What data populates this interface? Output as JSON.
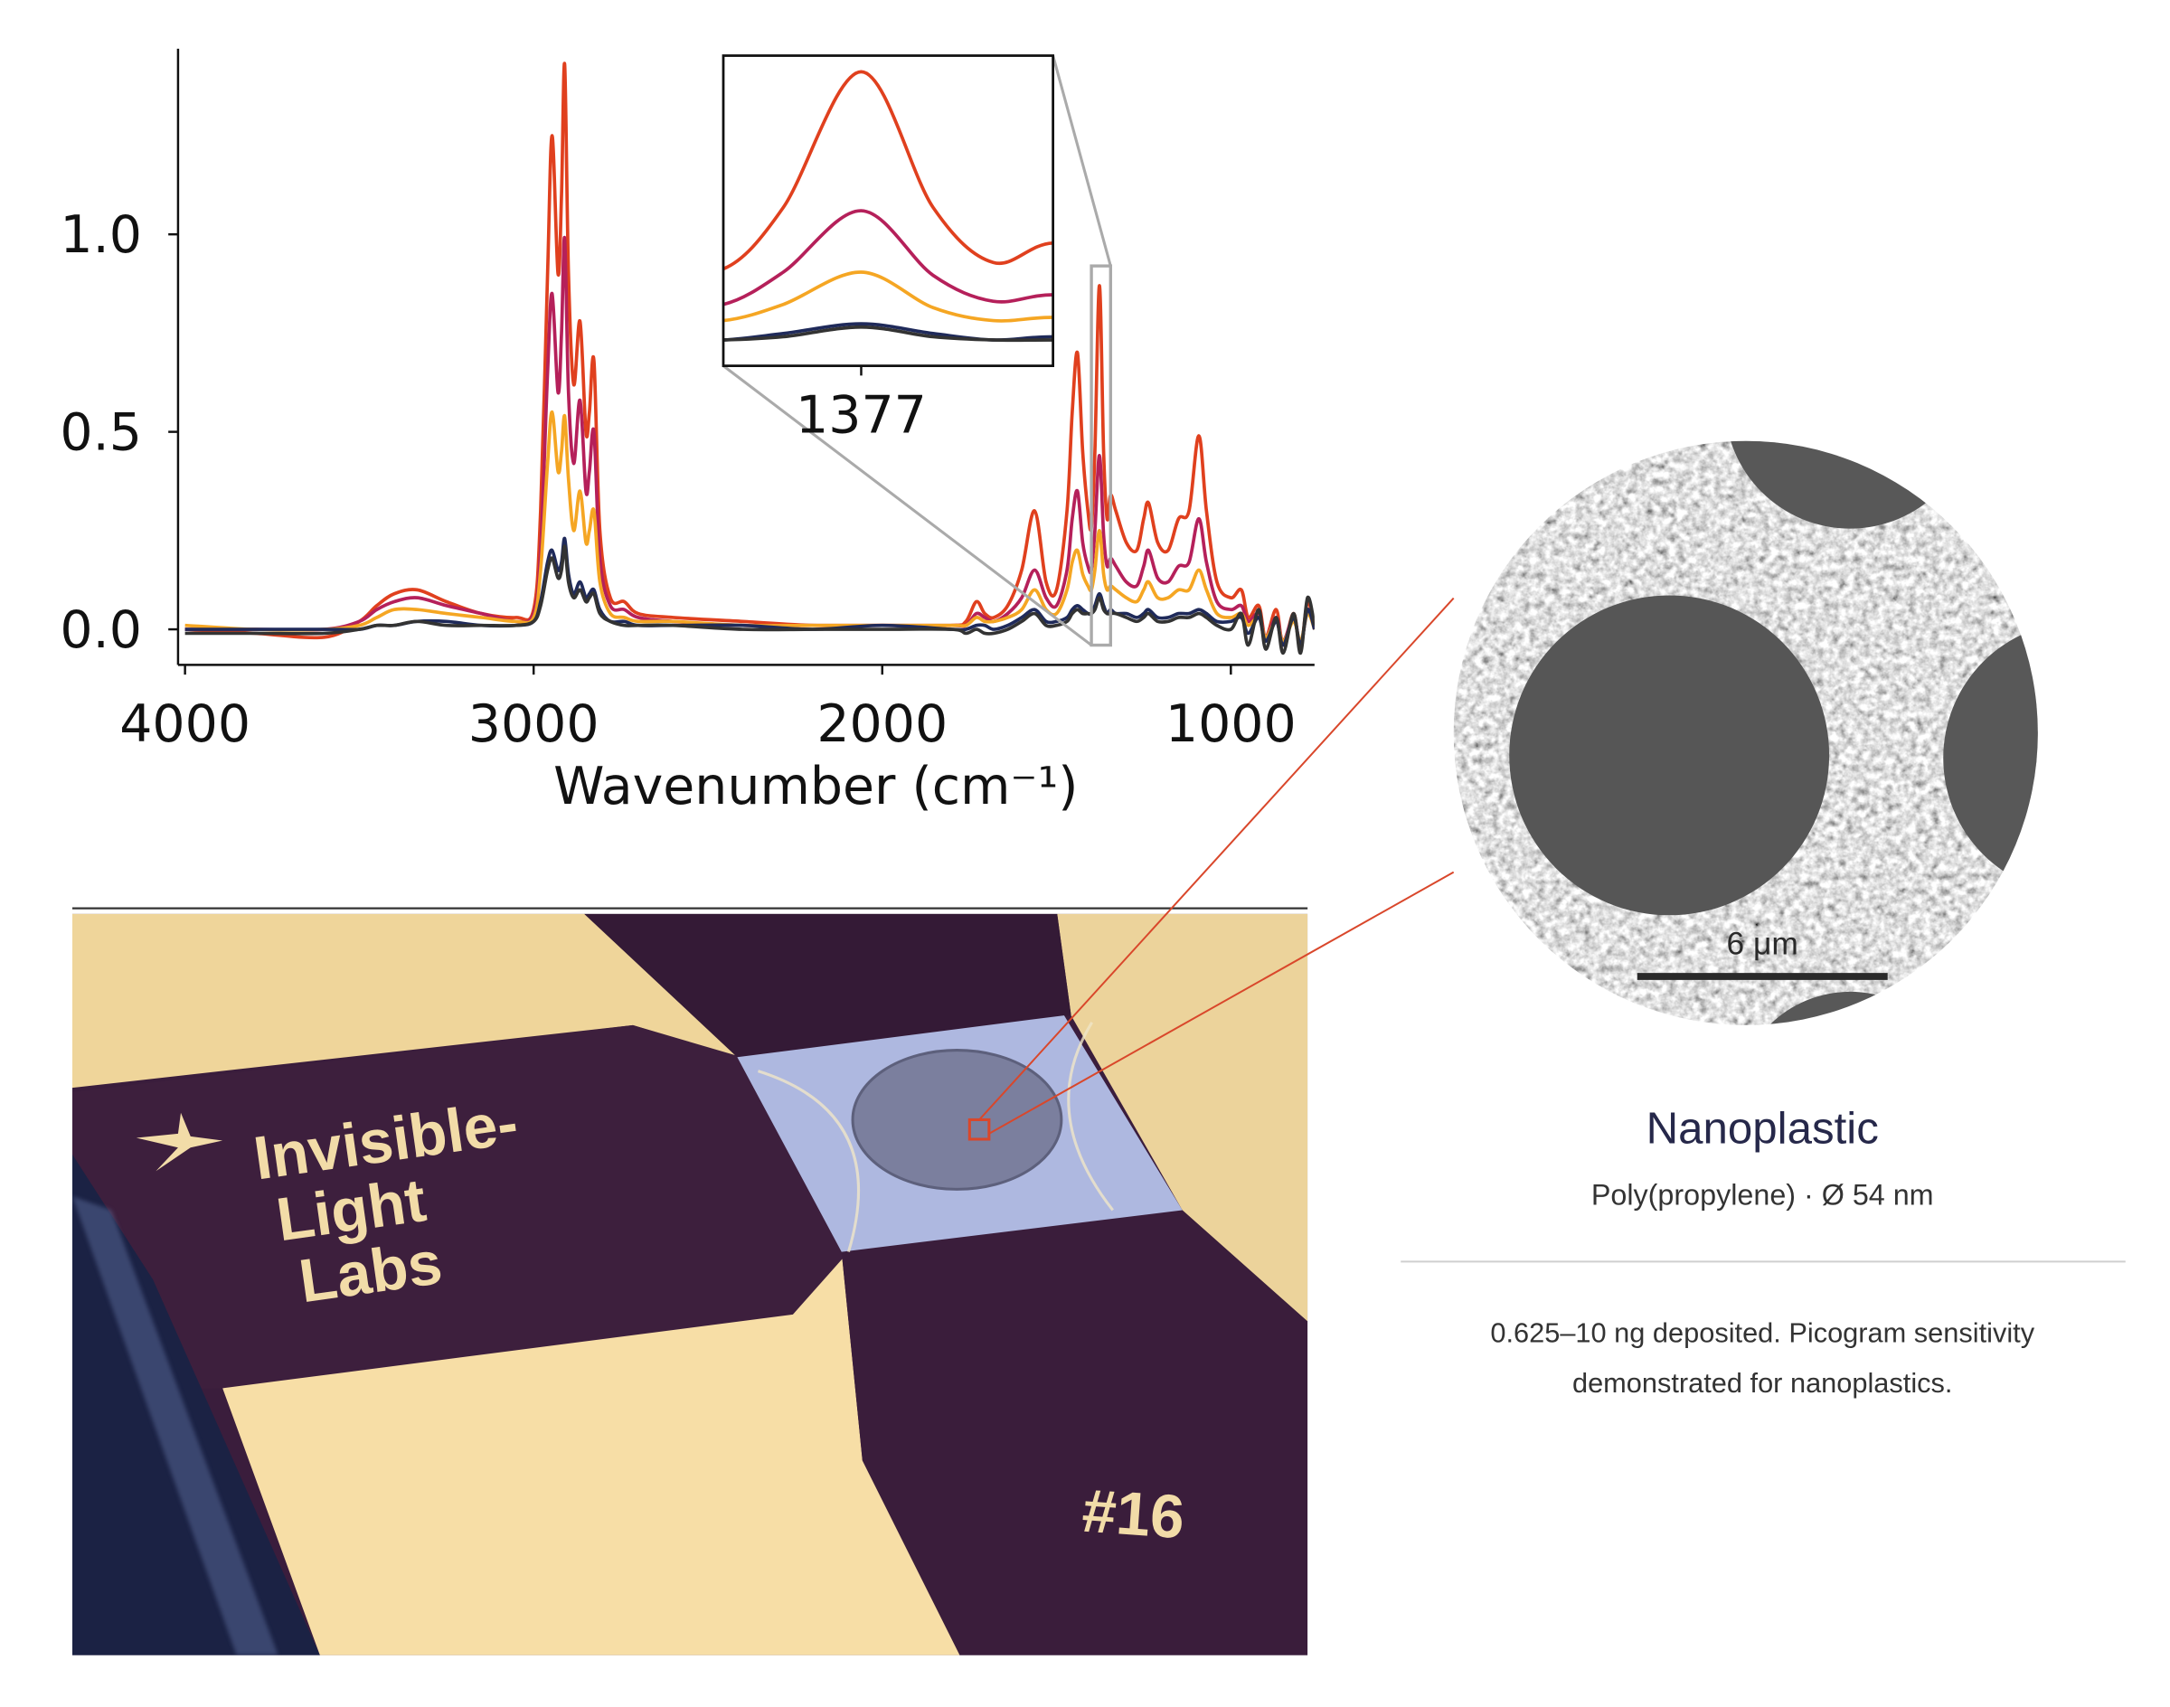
{
  "chart_data": {
    "type": "line",
    "x_label": "Wavenumber (cm⁻¹)",
    "x": [
      4000,
      3800,
      3600,
      3500,
      3450,
      3400,
      3334,
      3250,
      3150,
      3050,
      3000,
      2980,
      2960,
      2947,
      2930,
      2920,
      2911,
      2900,
      2885,
      2867,
      2850,
      2840,
      2827,
      2810,
      2780,
      2740,
      2700,
      2600,
      2400,
      2200,
      2000,
      1800,
      1760,
      1730,
      1706,
      1680,
      1640,
      1600,
      1563,
      1530,
      1500,
      1470,
      1455,
      1440,
      1425,
      1410,
      1400,
      1390,
      1377,
      1365,
      1355,
      1345,
      1330,
      1300,
      1270,
      1250,
      1236,
      1210,
      1180,
      1150,
      1120,
      1092,
      1070,
      1040,
      1000,
      970,
      950,
      920,
      900,
      870,
      850,
      820,
      800,
      780,
      760
    ],
    "series": [
      {
        "color": "#e0401e",
        "values": [
          0.0,
          -0.01,
          -0.02,
          0.02,
          0.06,
          0.09,
          0.1,
          0.07,
          0.04,
          0.03,
          0.05,
          0.3,
          0.9,
          1.25,
          0.9,
          1.1,
          1.43,
          0.9,
          0.62,
          0.78,
          0.5,
          0.55,
          0.68,
          0.25,
          0.08,
          0.07,
          0.04,
          0.03,
          0.02,
          0.01,
          0.01,
          0.01,
          0.02,
          0.07,
          0.04,
          0.03,
          0.06,
          0.15,
          0.3,
          0.12,
          0.1,
          0.3,
          0.55,
          0.7,
          0.45,
          0.3,
          0.26,
          0.45,
          0.87,
          0.45,
          0.28,
          0.34,
          0.3,
          0.22,
          0.2,
          0.28,
          0.32,
          0.22,
          0.2,
          0.28,
          0.3,
          0.49,
          0.3,
          0.12,
          0.08,
          0.1,
          0.03,
          0.06,
          -0.02,
          0.05,
          -0.04,
          0.04,
          -0.05,
          0.07,
          0.0
        ]
      },
      {
        "color": "#b5205a",
        "values": [
          0.0,
          0.0,
          0.0,
          0.02,
          0.05,
          0.07,
          0.08,
          0.06,
          0.04,
          0.02,
          0.04,
          0.2,
          0.65,
          0.85,
          0.6,
          0.75,
          0.99,
          0.6,
          0.42,
          0.58,
          0.35,
          0.4,
          0.5,
          0.18,
          0.06,
          0.05,
          0.03,
          0.02,
          0.01,
          0.01,
          0.01,
          0.01,
          0.01,
          0.04,
          0.03,
          0.02,
          0.04,
          0.08,
          0.15,
          0.08,
          0.06,
          0.15,
          0.28,
          0.35,
          0.22,
          0.16,
          0.15,
          0.25,
          0.44,
          0.24,
          0.16,
          0.18,
          0.16,
          0.12,
          0.11,
          0.16,
          0.2,
          0.13,
          0.12,
          0.16,
          0.17,
          0.28,
          0.17,
          0.07,
          0.05,
          0.06,
          0.02,
          0.04,
          -0.02,
          0.03,
          -0.03,
          0.03,
          -0.04,
          0.05,
          0.0
        ]
      },
      {
        "color": "#f5a623",
        "values": [
          0.01,
          0.0,
          0.0,
          0.01,
          0.03,
          0.05,
          0.05,
          0.04,
          0.03,
          0.02,
          0.03,
          0.15,
          0.42,
          0.55,
          0.4,
          0.45,
          0.54,
          0.38,
          0.25,
          0.35,
          0.22,
          0.25,
          0.3,
          0.12,
          0.04,
          0.03,
          0.02,
          0.02,
          0.01,
          0.01,
          0.01,
          0.01,
          0.01,
          0.03,
          0.02,
          0.02,
          0.03,
          0.05,
          0.1,
          0.05,
          0.04,
          0.1,
          0.17,
          0.2,
          0.14,
          0.11,
          0.1,
          0.15,
          0.25,
          0.14,
          0.1,
          0.11,
          0.1,
          0.08,
          0.07,
          0.1,
          0.12,
          0.08,
          0.08,
          0.1,
          0.1,
          0.15,
          0.1,
          0.04,
          0.03,
          0.04,
          0.01,
          0.03,
          -0.02,
          0.02,
          -0.03,
          0.02,
          -0.03,
          0.04,
          0.0
        ]
      },
      {
        "color": "#1f2a5a",
        "values": [
          0.0,
          0.0,
          0.0,
          0.0,
          0.01,
          0.01,
          0.02,
          0.02,
          0.01,
          0.01,
          0.02,
          0.07,
          0.17,
          0.2,
          0.15,
          0.17,
          0.23,
          0.14,
          0.09,
          0.12,
          0.08,
          0.09,
          0.1,
          0.05,
          0.02,
          0.02,
          0.01,
          0.01,
          0.01,
          0.0,
          0.01,
          0.0,
          0.0,
          0.01,
          0.01,
          0.0,
          0.01,
          0.03,
          0.05,
          0.02,
          0.02,
          0.03,
          0.05,
          0.06,
          0.05,
          0.04,
          0.04,
          0.06,
          0.09,
          0.06,
          0.04,
          0.05,
          0.04,
          0.04,
          0.03,
          0.04,
          0.05,
          0.03,
          0.03,
          0.04,
          0.04,
          0.05,
          0.04,
          0.02,
          0.02,
          0.03,
          -0.01,
          0.03,
          -0.03,
          0.02,
          -0.04,
          0.03,
          -0.04,
          0.05,
          0.0
        ]
      },
      {
        "color": "#333333",
        "values": [
          -0.01,
          -0.01,
          -0.01,
          0.0,
          0.01,
          0.01,
          0.02,
          0.01,
          0.01,
          0.01,
          0.02,
          0.06,
          0.15,
          0.18,
          0.13,
          0.15,
          0.21,
          0.12,
          0.08,
          0.1,
          0.07,
          0.08,
          0.09,
          0.04,
          0.02,
          0.01,
          0.01,
          0.01,
          0.0,
          0.0,
          0.0,
          0.0,
          -0.01,
          0.0,
          -0.01,
          -0.01,
          0.0,
          0.02,
          0.04,
          0.01,
          0.01,
          0.02,
          0.04,
          0.05,
          0.04,
          0.04,
          0.04,
          0.05,
          0.08,
          0.05,
          0.04,
          0.04,
          0.04,
          0.03,
          0.02,
          0.03,
          0.04,
          0.02,
          0.02,
          0.03,
          0.03,
          0.04,
          0.03,
          0.01,
          0.0,
          0.04,
          -0.04,
          0.05,
          -0.05,
          0.03,
          -0.06,
          0.04,
          -0.06,
          0.08,
          0.01
        ]
      }
    ],
    "xlim": [
      4020,
      760
    ],
    "xticks": [
      4000,
      3000,
      2000,
      1000
    ],
    "ylim": [
      -0.09,
      1.47
    ],
    "yticks": [
      {
        "value": 0,
        "label": "0.0"
      },
      {
        "value": 0.5,
        "label": "0.5"
      },
      {
        "value": 1,
        "label": "1.0"
      }
    ],
    "inset": {
      "xlim": [
        1400,
        1345
      ],
      "ylim": [
        -0.04,
        0.92
      ],
      "xticks": [
        1377
      ]
    }
  },
  "photo": {
    "logo_text": [
      "Invisible-",
      "Light",
      "Labs"
    ],
    "chip_number": "#16"
  },
  "sem": {
    "scale_bar": "6 μm"
  },
  "caption": {
    "title": "Nanoplastic",
    "subtitle": "Poly(propylene) · Ø 54 nm",
    "description": [
      "0.625–10 ng deposited. Picogram sensitivity",
      "demonstrated for nanoplastics."
    ]
  }
}
